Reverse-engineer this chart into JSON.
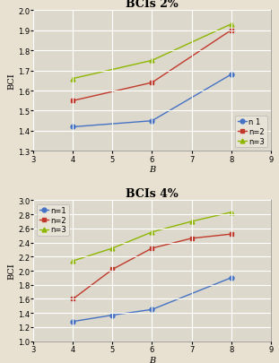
{
  "chart1": {
    "title": "BCIs 2%",
    "xlabel": "B",
    "ylabel": "BCI",
    "xlim": [
      3,
      9
    ],
    "ylim": [
      1.3,
      2.0
    ],
    "yticks": [
      1.3,
      1.4,
      1.5,
      1.6,
      1.7,
      1.8,
      1.9,
      2.0
    ],
    "xticks": [
      3,
      4,
      5,
      6,
      7,
      8,
      9
    ],
    "legend_loc": "lower right",
    "series": [
      {
        "label": "n 1",
        "x": [
          4,
          6,
          8
        ],
        "y": [
          1.42,
          1.45,
          1.68
        ],
        "color": "#4472c4",
        "marker": "o",
        "linestyle": "-"
      },
      {
        "label": "n=2",
        "x": [
          4,
          6,
          8
        ],
        "y": [
          1.55,
          1.64,
          1.9
        ],
        "color": "#c0392b",
        "marker": "s",
        "linestyle": "-"
      },
      {
        "label": "n=3",
        "x": [
          4,
          6,
          8
        ],
        "y": [
          1.66,
          1.75,
          1.93
        ],
        "color": "#8db600",
        "marker": "^",
        "linestyle": "-"
      }
    ]
  },
  "chart2": {
    "title": "BCIs 4%",
    "xlabel": "B",
    "ylabel": "BCI",
    "xlim": [
      3,
      9
    ],
    "ylim": [
      1.0,
      3.0
    ],
    "yticks": [
      1.0,
      1.2,
      1.4,
      1.6,
      1.8,
      2.0,
      2.2,
      2.4,
      2.6,
      2.8,
      3.0
    ],
    "xticks": [
      3,
      4,
      5,
      6,
      7,
      8,
      9
    ],
    "legend_loc": "upper left",
    "series": [
      {
        "label": "n=1",
        "x": [
          4,
          5,
          6,
          8
        ],
        "y": [
          1.28,
          1.37,
          1.45,
          1.9
        ],
        "color": "#4472c4",
        "marker": "o",
        "linestyle": "-"
      },
      {
        "label": "n=2",
        "x": [
          4,
          5,
          6,
          7,
          8
        ],
        "y": [
          1.6,
          2.02,
          2.32,
          2.46,
          2.52
        ],
        "color": "#c0392b",
        "marker": "s",
        "linestyle": "-"
      },
      {
        "label": "n=3",
        "x": [
          4,
          5,
          6,
          7,
          8
        ],
        "y": [
          2.14,
          2.32,
          2.55,
          2.7,
          2.83
        ],
        "color": "#8db600",
        "marker": "^",
        "linestyle": "-"
      }
    ]
  },
  "background_color": "#e8e0d0",
  "plot_bg_color": "#ddd8cc",
  "grid_color": "#ffffff",
  "title_fontsize": 9,
  "label_fontsize": 7,
  "tick_fontsize": 6,
  "legend_fontsize": 6,
  "spine_color": "#999999"
}
